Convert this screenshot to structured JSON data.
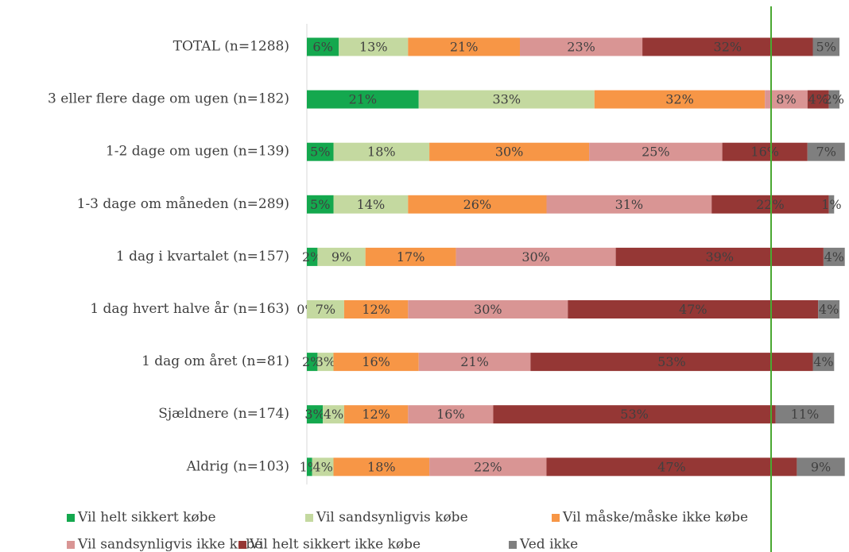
{
  "chart_data": {
    "type": "stacked-bar-horizontal",
    "categories": [
      "TOTAL (n=1288)",
      "3 eller flere dage om ugen (n=182)",
      "1-2 dage om ugen (n=139)",
      "1-3 dage om måneden (n=289)",
      "1 dag i kvartalet (n=157)",
      "1 dag hvert halve år (n=163)",
      "1 dag om året (n=81)",
      "Sjældnere (n=174)",
      "Aldrig (n=103)"
    ],
    "xlim": [
      0,
      100
    ],
    "series": [
      {
        "name": "Vil helt sikkert købe",
        "color": "#14a84e",
        "values": [
          6,
          21,
          5,
          5,
          2,
          0,
          2,
          3,
          1
        ],
        "value_labels": [
          "6%",
          "21%",
          "5%",
          "5%",
          "2%",
          "0%",
          "2%",
          "3%",
          "1%"
        ]
      },
      {
        "name": "Vil sandsynligvis købe",
        "color": "#c4d9a0",
        "values": [
          13,
          33,
          18,
          14,
          9,
          7,
          3,
          4,
          4
        ],
        "value_labels": [
          "13%",
          "33%",
          "18%",
          "14%",
          "9%",
          "7%",
          "3%",
          "4%",
          "4%"
        ]
      },
      {
        "name": "Vil måske/måske ikke købe",
        "color": "#f79646",
        "values": [
          21,
          32,
          30,
          26,
          17,
          12,
          16,
          12,
          18
        ],
        "value_labels": [
          "21%",
          "32%",
          "30%",
          "26%",
          "17%",
          "12%",
          "16%",
          "12%",
          "18%"
        ]
      },
      {
        "name": "Vil sandsynligvis ikke købe",
        "color": "#d99594",
        "values": [
          23,
          8,
          25,
          31,
          30,
          30,
          21,
          16,
          22
        ],
        "value_labels": [
          "23%",
          "8%",
          "25%",
          "31%",
          "30%",
          "30%",
          "21%",
          "16%",
          "22%"
        ]
      },
      {
        "name": "Vil helt sikkert ikke købe",
        "color": "#953735",
        "values": [
          32,
          4,
          16,
          22,
          39,
          47,
          53,
          53,
          47
        ],
        "value_labels": [
          "32%",
          "4%",
          "16%",
          "22%",
          "39%",
          "47%",
          "53%",
          "53%",
          "47%"
        ]
      },
      {
        "name": "Ved ikke",
        "color": "#7f7f7f",
        "values": [
          5,
          2,
          7,
          1,
          4,
          4,
          4,
          11,
          9
        ],
        "value_labels": [
          "5%",
          "2%",
          "7%",
          "1%",
          "4%",
          "4%",
          "4%",
          "11%",
          "9%"
        ]
      }
    ]
  }
}
